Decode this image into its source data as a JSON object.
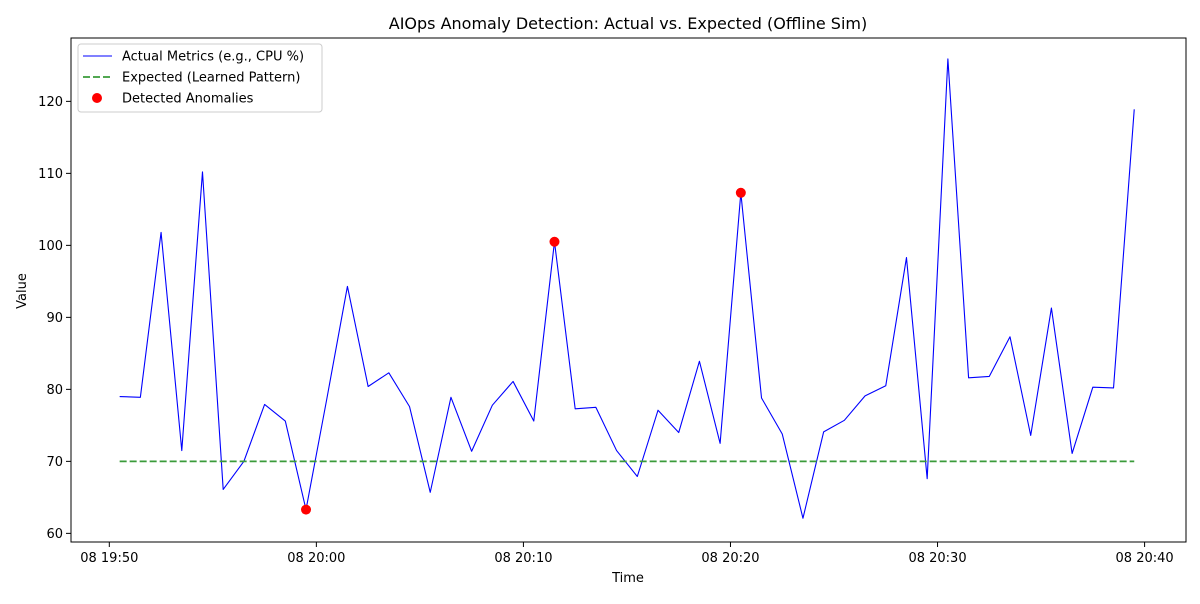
{
  "chart_data": {
    "type": "line",
    "title": "AIOps Anomaly Detection: Actual vs. Expected (Offline Sim)",
    "xlabel": "Time",
    "ylabel": "Value",
    "x_ticks": [
      {
        "minute": 0,
        "label": "08 19:50"
      },
      {
        "minute": 10,
        "label": "08 20:00"
      },
      {
        "minute": 20,
        "label": "08 20:10"
      },
      {
        "minute": 30,
        "label": "08 20:20"
      },
      {
        "minute": 40,
        "label": "08 20:30"
      },
      {
        "minute": 50,
        "label": "08 20:40"
      }
    ],
    "y_ticks": [
      60,
      70,
      80,
      90,
      100,
      110,
      120
    ],
    "xlim": [
      -1.85,
      52.0
    ],
    "ylim": [
      58.8,
      128.8
    ],
    "x_start_minute": 0.5,
    "x_step_minutes": 1,
    "series": [
      {
        "name": "Actual Metrics (e.g., CPU %)",
        "style": "solid",
        "color": "#0000ff",
        "values": [
          79.0,
          78.9,
          101.8,
          71.5,
          110.2,
          66.1,
          70.0,
          77.9,
          75.6,
          63.3,
          78.6,
          94.3,
          80.4,
          82.3,
          77.6,
          65.7,
          78.9,
          71.4,
          77.8,
          81.1,
          75.6,
          100.5,
          77.3,
          77.5,
          71.5,
          67.9,
          77.1,
          74.0,
          83.9,
          72.5,
          107.3,
          78.8,
          73.8,
          62.1,
          74.1,
          75.7,
          79.1,
          80.5,
          98.3,
          67.6,
          125.9,
          81.6,
          81.8,
          87.3,
          73.6,
          91.3,
          71.1,
          80.3,
          80.2,
          118.9
        ]
      },
      {
        "name": "Expected (Learned Pattern)",
        "style": "dashed",
        "color": "#3a9b3a",
        "values": [
          70,
          70,
          70,
          70,
          70,
          70,
          70,
          70,
          70,
          70,
          70,
          70,
          70,
          70,
          70,
          70,
          70,
          70,
          70,
          70,
          70,
          70,
          70,
          70,
          70,
          70,
          70,
          70,
          70,
          70,
          70,
          70,
          70,
          70,
          70,
          70,
          70,
          70,
          70,
          70,
          70,
          70,
          70,
          70,
          70,
          70,
          70,
          70,
          70,
          70
        ]
      },
      {
        "name": "Detected Anomalies",
        "style": "marker",
        "color": "#ff0000",
        "points": [
          {
            "index": 9,
            "value": 63.3
          },
          {
            "index": 21,
            "value": 100.5
          },
          {
            "index": 30,
            "value": 107.3
          }
        ]
      }
    ],
    "legend": {
      "position": "top-left",
      "entries": [
        "Actual Metrics (e.g., CPU %)",
        "Expected (Learned Pattern)",
        "Detected Anomalies"
      ]
    },
    "grid": false
  }
}
